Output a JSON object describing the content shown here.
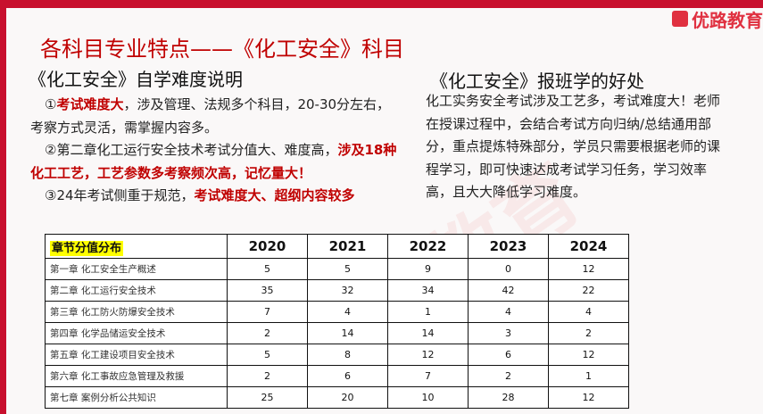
{
  "logo": "优路教育",
  "title": "各科目专业特点——《化工安全》科目",
  "left": {
    "heading": "《化工安全》自学难度说明",
    "p1": {
      "n": "①",
      "red": "考试难度大",
      "rest": "，涉及管理、法规多个科目，20-30分左右，考察方式灵活，需掌握内容多。"
    },
    "p2": {
      "n": "②",
      "text": "第二章化工运行安全技术考试分值大、难度高，",
      "red": "涉及18种化工工艺，工艺参数多考察频次高，记忆量大！"
    },
    "p3": {
      "n": "③",
      "text": "24年考试侧重于规范，",
      "red": "考试难度大、超纲内容较多"
    }
  },
  "right": {
    "heading": "《化工安全》报班学的好处",
    "text": "化工实务安全考试涉及工艺多，考试难度大！老师在授课过程中，会结合考试方向归纳/总结通用部分，重点提炼特殊部分，学员只需要根据老师的课程学习，即可快速达成考试学习任务，学习效率高，且大大降低学习难度。"
  },
  "table": {
    "header": [
      "章节分值分布",
      "2020",
      "2021",
      "2022",
      "2023",
      "2024"
    ],
    "rows": [
      [
        "第一章 化工安全生产概述",
        "5",
        "5",
        "9",
        "0",
        "12"
      ],
      [
        "第二章 化工运行安全技术",
        "35",
        "32",
        "34",
        "42",
        "22"
      ],
      [
        "第三章 化工防火防爆安全技术",
        "7",
        "4",
        "1",
        "4",
        "4"
      ],
      [
        "第四章 化学品储运安全技术",
        "2",
        "14",
        "14",
        "3",
        "2"
      ],
      [
        "第五章 化工建设项目安全技术",
        "5",
        "8",
        "12",
        "6",
        "12"
      ],
      [
        "第六章 化工事故应急管理及救援",
        "2",
        "6",
        "7",
        "2",
        "1"
      ],
      [
        "第七章 案例分析公共知识",
        "25",
        "20",
        "10",
        "28",
        "12"
      ]
    ]
  }
}
